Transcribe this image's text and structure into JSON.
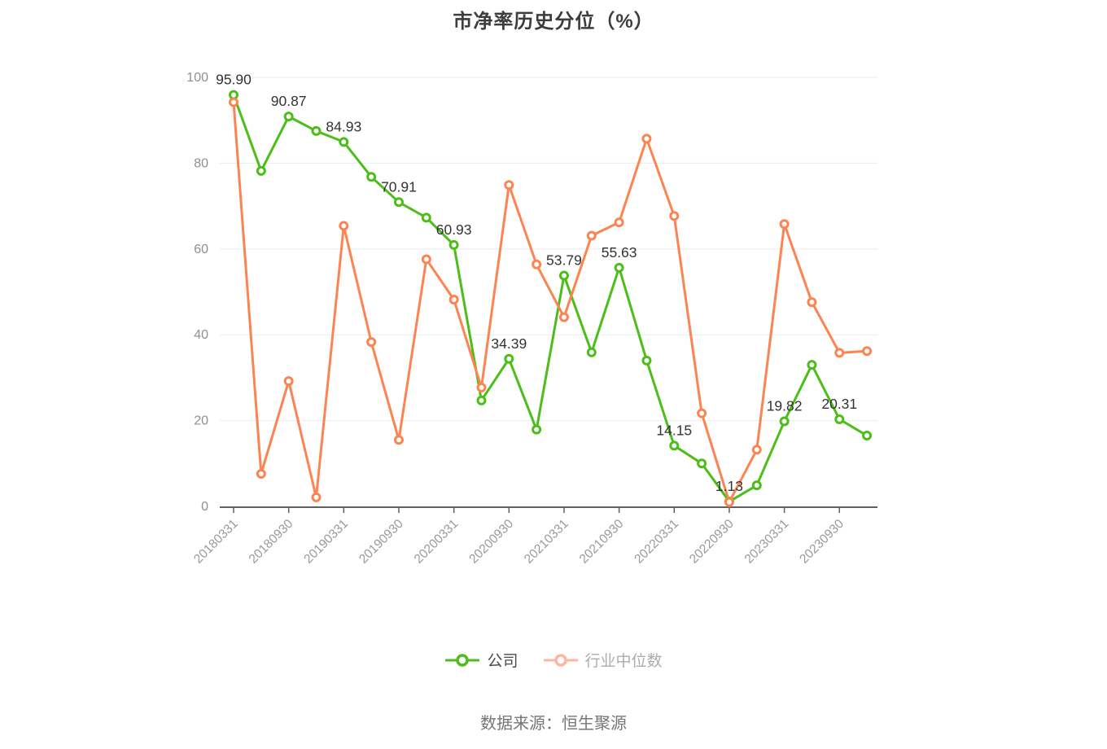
{
  "page": {
    "title": "市净率历史分位（%）",
    "source": "数据来源：恒生聚源"
  },
  "chart_data": {
    "type": "line",
    "title": "市净率历史分位（%）",
    "ylim": [
      0,
      100
    ],
    "y_ticks": [
      0,
      20,
      40,
      60,
      80,
      100
    ],
    "grid": true,
    "legend_position": "bottom",
    "x_tick_labels": [
      "20180331",
      "20180930",
      "20190331",
      "20190930",
      "20200331",
      "20200930",
      "20210331",
      "20210930",
      "20220331",
      "20220930",
      "20230331",
      "20230930"
    ],
    "x_tick_every": 2,
    "series": [
      {
        "name": "公司",
        "color": "#4cbe19",
        "values": [
          95.9,
          78.2,
          90.87,
          87.5,
          84.93,
          76.8,
          70.91,
          67.3,
          60.93,
          24.7,
          34.39,
          17.9,
          53.79,
          35.9,
          55.63,
          34.0,
          14.15,
          10.0,
          1.13,
          4.9,
          19.82,
          33.0,
          20.31,
          16.5
        ],
        "point_labels": [
          "95.90",
          null,
          "90.87",
          null,
          "84.93",
          null,
          "70.91",
          null,
          "60.93",
          null,
          "34.39",
          null,
          "53.79",
          null,
          "55.63",
          null,
          "14.15",
          null,
          "1.13",
          null,
          "19.82",
          null,
          "20.31",
          null
        ]
      },
      {
        "name": "行业中位数",
        "color": "#fc8452",
        "values": [
          94.2,
          7.6,
          29.2,
          2.1,
          65.4,
          38.3,
          15.5,
          57.6,
          48.2,
          27.7,
          74.9,
          56.4,
          44.1,
          63.1,
          66.2,
          85.7,
          67.7,
          21.7,
          1.0,
          13.2,
          65.8,
          47.6,
          35.8,
          36.2
        ],
        "point_labels": [
          null,
          null,
          null,
          null,
          null,
          null,
          null,
          null,
          null,
          null,
          null,
          null,
          null,
          null,
          null,
          null,
          null,
          null,
          null,
          null,
          null,
          null,
          null,
          null
        ]
      }
    ],
    "colors": {
      "data_label": "#333333",
      "axis_line": "#606060",
      "grid_line": "#e8ecf3",
      "y_tick_label": "#8f8f8f",
      "x_tick_label": "#999999",
      "legend_company_text": "#4a4a4a",
      "legend_industry_text": "#acacac",
      "legend_industry_icon": "#ffb59f",
      "title_text": "#3d3d3d"
    }
  }
}
